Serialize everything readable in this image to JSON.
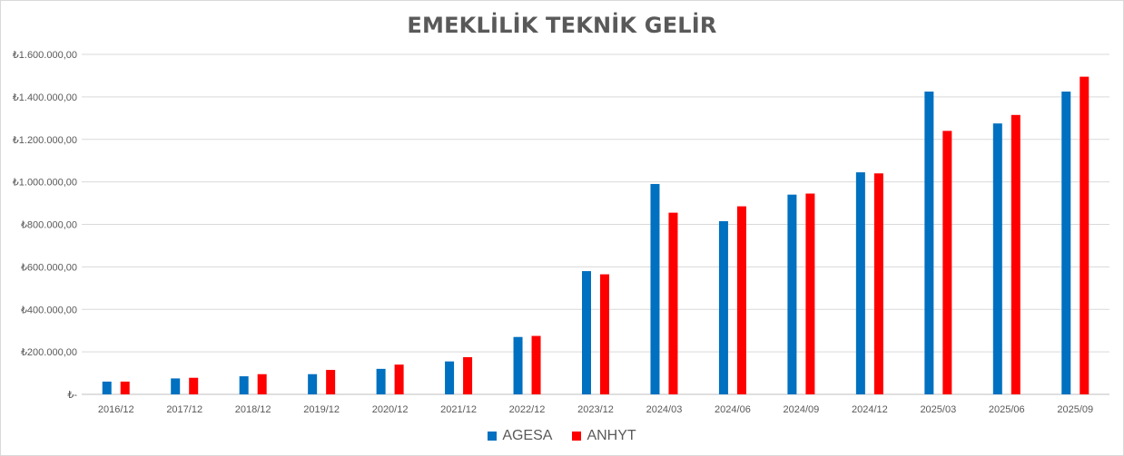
{
  "chart_data": {
    "type": "bar",
    "title": "EMEKLİLİK TEKNİK GELİR",
    "xlabel": "",
    "ylabel": "",
    "ylim": [
      0,
      1600000
    ],
    "yticks": [
      "₺-",
      "₺200.000,00",
      "₺400.000,00",
      "₺600.000,00",
      "₺800.000,00",
      "₺1.000.000,00",
      "₺1.200.000,00",
      "₺1.400.000,00",
      "₺1.600.000,00"
    ],
    "categories": [
      "2016/12",
      "2017/12",
      "2018/12",
      "2019/12",
      "2020/12",
      "2021/12",
      "2022/12",
      "2023/12",
      "2024/03",
      "2024/06",
      "2024/09",
      "2024/12",
      "2025/03",
      "2025/06",
      "2025/09"
    ],
    "series": [
      {
        "name": "AGESA",
        "color": "#0070c0",
        "values": [
          60000,
          75000,
          85000,
          95000,
          120000,
          155000,
          270000,
          580000,
          990000,
          815000,
          940000,
          1045000,
          1425000,
          1275000,
          1425000
        ]
      },
      {
        "name": "ANHYT",
        "color": "#ff0000",
        "values": [
          60000,
          78000,
          95000,
          115000,
          140000,
          175000,
          275000,
          565000,
          855000,
          885000,
          945000,
          1040000,
          1240000,
          1315000,
          1495000
        ]
      }
    ],
    "grid": true,
    "legend": "bottom"
  }
}
